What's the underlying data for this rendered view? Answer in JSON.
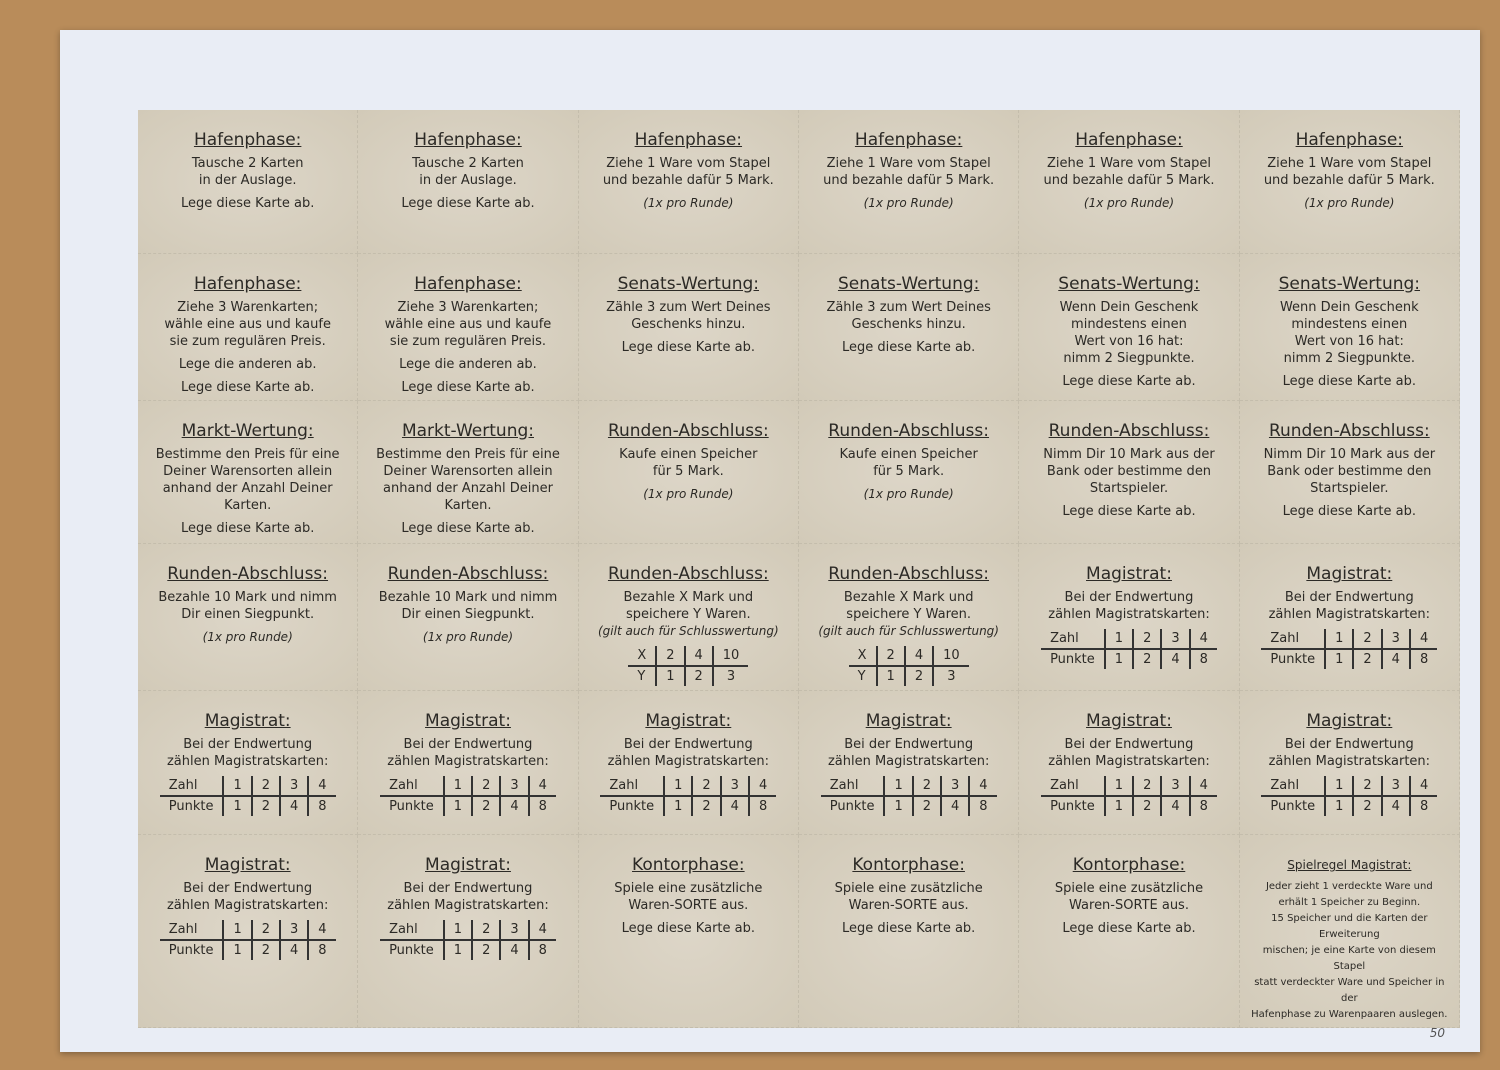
{
  "page_number_handwritten": "50",
  "cards": [
    {
      "title": "Hafenphase:",
      "lines": [
        "Tausche 2 Karten",
        "in der Auslage."
      ],
      "after": [
        "Lege diese Karte ab."
      ]
    },
    {
      "title": "Hafenphase:",
      "lines": [
        "Tausche 2 Karten",
        "in der Auslage."
      ],
      "after": [
        "Lege diese Karte ab."
      ]
    },
    {
      "title": "Hafenphase:",
      "lines": [
        "Ziehe 1 Ware vom Stapel",
        "und bezahle dafür 5 Mark."
      ],
      "italic": "(1x pro Runde)"
    },
    {
      "title": "Hafenphase:",
      "lines": [
        "Ziehe 1 Ware vom Stapel",
        "und bezahle dafür 5 Mark."
      ],
      "italic": "(1x pro Runde)"
    },
    {
      "title": "Hafenphase:",
      "lines": [
        "Ziehe 1 Ware vom Stapel",
        "und bezahle dafür 5 Mark."
      ],
      "italic": "(1x pro Runde)"
    },
    {
      "title": "Hafenphase:",
      "lines": [
        "Ziehe 1 Ware vom Stapel",
        "und bezahle dafür 5 Mark."
      ],
      "italic": "(1x pro Runde)"
    },
    {
      "title": "Hafenphase:",
      "lines": [
        "Ziehe 3 Warenkarten;",
        "wähle eine aus und kaufe",
        "sie zum regulären Preis."
      ],
      "after": [
        "Lege die anderen ab.",
        "Lege diese Karte ab."
      ]
    },
    {
      "title": "Hafenphase:",
      "lines": [
        "Ziehe 3 Warenkarten;",
        "wähle eine aus und kaufe",
        "sie zum regulären Preis."
      ],
      "after": [
        "Lege die anderen ab.",
        "Lege diese Karte ab."
      ]
    },
    {
      "title": "Senats-Wertung:",
      "lines": [
        "Zähle 3 zum Wert Deines",
        "Geschenks hinzu."
      ],
      "after": [
        "Lege diese Karte ab."
      ]
    },
    {
      "title": "Senats-Wertung:",
      "lines": [
        "Zähle 3 zum Wert Deines",
        "Geschenks hinzu."
      ],
      "after": [
        "Lege diese Karte ab."
      ]
    },
    {
      "title": "Senats-Wertung:",
      "lines": [
        "Wenn Dein Geschenk",
        "mindestens einen",
        "Wert von 16 hat:",
        "nimm 2 Siegpunkte."
      ],
      "after": [
        "Lege diese Karte ab."
      ]
    },
    {
      "title": "Senats-Wertung:",
      "lines": [
        "Wenn Dein Geschenk",
        "mindestens einen",
        "Wert von 16 hat:",
        "nimm 2 Siegpunkte."
      ],
      "after": [
        "Lege diese Karte ab."
      ]
    },
    {
      "title": "Markt-Wertung:",
      "lines": [
        "Bestimme den Preis für eine",
        "Deiner Warensorten allein",
        "anhand der Anzahl Deiner",
        "Karten."
      ],
      "after": [
        "Lege diese Karte ab."
      ]
    },
    {
      "title": "Markt-Wertung:",
      "lines": [
        "Bestimme den Preis für eine",
        "Deiner Warensorten allein",
        "anhand der Anzahl Deiner",
        "Karten."
      ],
      "after": [
        "Lege diese Karte ab."
      ]
    },
    {
      "title": "Runden-Abschluss:",
      "lines": [
        "Kaufe einen Speicher",
        "für 5 Mark."
      ],
      "italic": "(1x pro Runde)"
    },
    {
      "title": "Runden-Abschluss:",
      "lines": [
        "Kaufe einen Speicher",
        "für 5 Mark."
      ],
      "italic": "(1x pro Runde)"
    },
    {
      "title": "Runden-Abschluss:",
      "lines": [
        "Nimm Dir 10 Mark aus der",
        "Bank oder bestimme den",
        "Startspieler."
      ],
      "after": [
        "Lege diese Karte ab."
      ]
    },
    {
      "title": "Runden-Abschluss:",
      "lines": [
        "Nimm Dir 10 Mark aus der",
        "Bank oder bestimme den",
        "Startspieler."
      ],
      "after": [
        "Lege diese Karte ab."
      ]
    },
    {
      "title": "Runden-Abschluss:",
      "lines": [
        "Bezahle 10 Mark und nimm",
        "Dir einen Siegpunkt."
      ],
      "italic": "(1x pro Runde)"
    },
    {
      "title": "Runden-Abschluss:",
      "lines": [
        "Bezahle 10 Mark und nimm",
        "Dir einen Siegpunkt."
      ],
      "italic": "(1x pro Runde)"
    },
    {
      "title": "Runden-Abschluss:",
      "lines": [
        "Bezahle X Mark und",
        "speichere Y Waren."
      ],
      "note": "(gilt auch für Schlusswertung)",
      "table": [
        [
          "X",
          "2",
          "4",
          "10"
        ],
        [
          "Y",
          "1",
          "2",
          "3"
        ]
      ]
    },
    {
      "title": "Runden-Abschluss:",
      "lines": [
        "Bezahle X Mark und",
        "speichere Y Waren."
      ],
      "note": "(gilt auch für Schlusswertung)",
      "table": [
        [
          "X",
          "2",
          "4",
          "10"
        ],
        [
          "Y",
          "1",
          "2",
          "3"
        ]
      ]
    },
    {
      "title": "Magistrat:",
      "lines": [
        "Bei der Endwertung",
        "zählen Magistratskarten:"
      ],
      "table": [
        [
          "Zahl",
          "1",
          "2",
          "3",
          "4"
        ],
        [
          "Punkte",
          "1",
          "2",
          "4",
          "8"
        ]
      ]
    },
    {
      "title": "Magistrat:",
      "lines": [
        "Bei der Endwertung",
        "zählen Magistratskarten:"
      ],
      "table": [
        [
          "Zahl",
          "1",
          "2",
          "3",
          "4"
        ],
        [
          "Punkte",
          "1",
          "2",
          "4",
          "8"
        ]
      ]
    },
    {
      "title": "Magistrat:",
      "lines": [
        "Bei der Endwertung",
        "zählen Magistratskarten:"
      ],
      "table": [
        [
          "Zahl",
          "1",
          "2",
          "3",
          "4"
        ],
        [
          "Punkte",
          "1",
          "2",
          "4",
          "8"
        ]
      ]
    },
    {
      "title": "Magistrat:",
      "lines": [
        "Bei der Endwertung",
        "zählen Magistratskarten:"
      ],
      "table": [
        [
          "Zahl",
          "1",
          "2",
          "3",
          "4"
        ],
        [
          "Punkte",
          "1",
          "2",
          "4",
          "8"
        ]
      ]
    },
    {
      "title": "Magistrat:",
      "lines": [
        "Bei der Endwertung",
        "zählen Magistratskarten:"
      ],
      "table": [
        [
          "Zahl",
          "1",
          "2",
          "3",
          "4"
        ],
        [
          "Punkte",
          "1",
          "2",
          "4",
          "8"
        ]
      ]
    },
    {
      "title": "Magistrat:",
      "lines": [
        "Bei der Endwertung",
        "zählen Magistratskarten:"
      ],
      "table": [
        [
          "Zahl",
          "1",
          "2",
          "3",
          "4"
        ],
        [
          "Punkte",
          "1",
          "2",
          "4",
          "8"
        ]
      ]
    },
    {
      "title": "Magistrat:",
      "lines": [
        "Bei der Endwertung",
        "zählen Magistratskarten:"
      ],
      "table": [
        [
          "Zahl",
          "1",
          "2",
          "3",
          "4"
        ],
        [
          "Punkte",
          "1",
          "2",
          "4",
          "8"
        ]
      ]
    },
    {
      "title": "Magistrat:",
      "lines": [
        "Bei der Endwertung",
        "zählen Magistratskarten:"
      ],
      "table": [
        [
          "Zahl",
          "1",
          "2",
          "3",
          "4"
        ],
        [
          "Punkte",
          "1",
          "2",
          "4",
          "8"
        ]
      ]
    },
    {
      "title": "Magistrat:",
      "lines": [
        "Bei der Endwertung",
        "zählen Magistratskarten:"
      ],
      "table": [
        [
          "Zahl",
          "1",
          "2",
          "3",
          "4"
        ],
        [
          "Punkte",
          "1",
          "2",
          "4",
          "8"
        ]
      ]
    },
    {
      "title": "Magistrat:",
      "lines": [
        "Bei der Endwertung",
        "zählen Magistratskarten:"
      ],
      "table": [
        [
          "Zahl",
          "1",
          "2",
          "3",
          "4"
        ],
        [
          "Punkte",
          "1",
          "2",
          "4",
          "8"
        ]
      ]
    },
    {
      "title": "Kontorphase:",
      "lines": [
        "Spiele eine zusätzliche",
        "Waren-SORTE aus."
      ],
      "after": [
        "Lege diese Karte ab."
      ]
    },
    {
      "title": "Kontorphase:",
      "lines": [
        "Spiele eine zusätzliche",
        "Waren-SORTE aus."
      ],
      "after": [
        "Lege diese Karte ab."
      ]
    },
    {
      "title": "Kontorphase:",
      "lines": [
        "Spiele eine zusätzliche",
        "Waren-SORTE aus."
      ],
      "after": [
        "Lege diese Karte ab."
      ]
    },
    {
      "title": "Spielregel Magistrat:",
      "small": true,
      "lines": [
        "Jeder zieht 1 verdeckte Ware und",
        "erhält 1 Speicher zu Beginn.",
        "15 Speicher und die Karten der Erweiterung",
        "mischen; je eine Karte von diesem Stapel",
        "statt verdeckter Ware und Speicher in der",
        "Hafenphase zu Warenpaaren auslegen."
      ]
    }
  ]
}
